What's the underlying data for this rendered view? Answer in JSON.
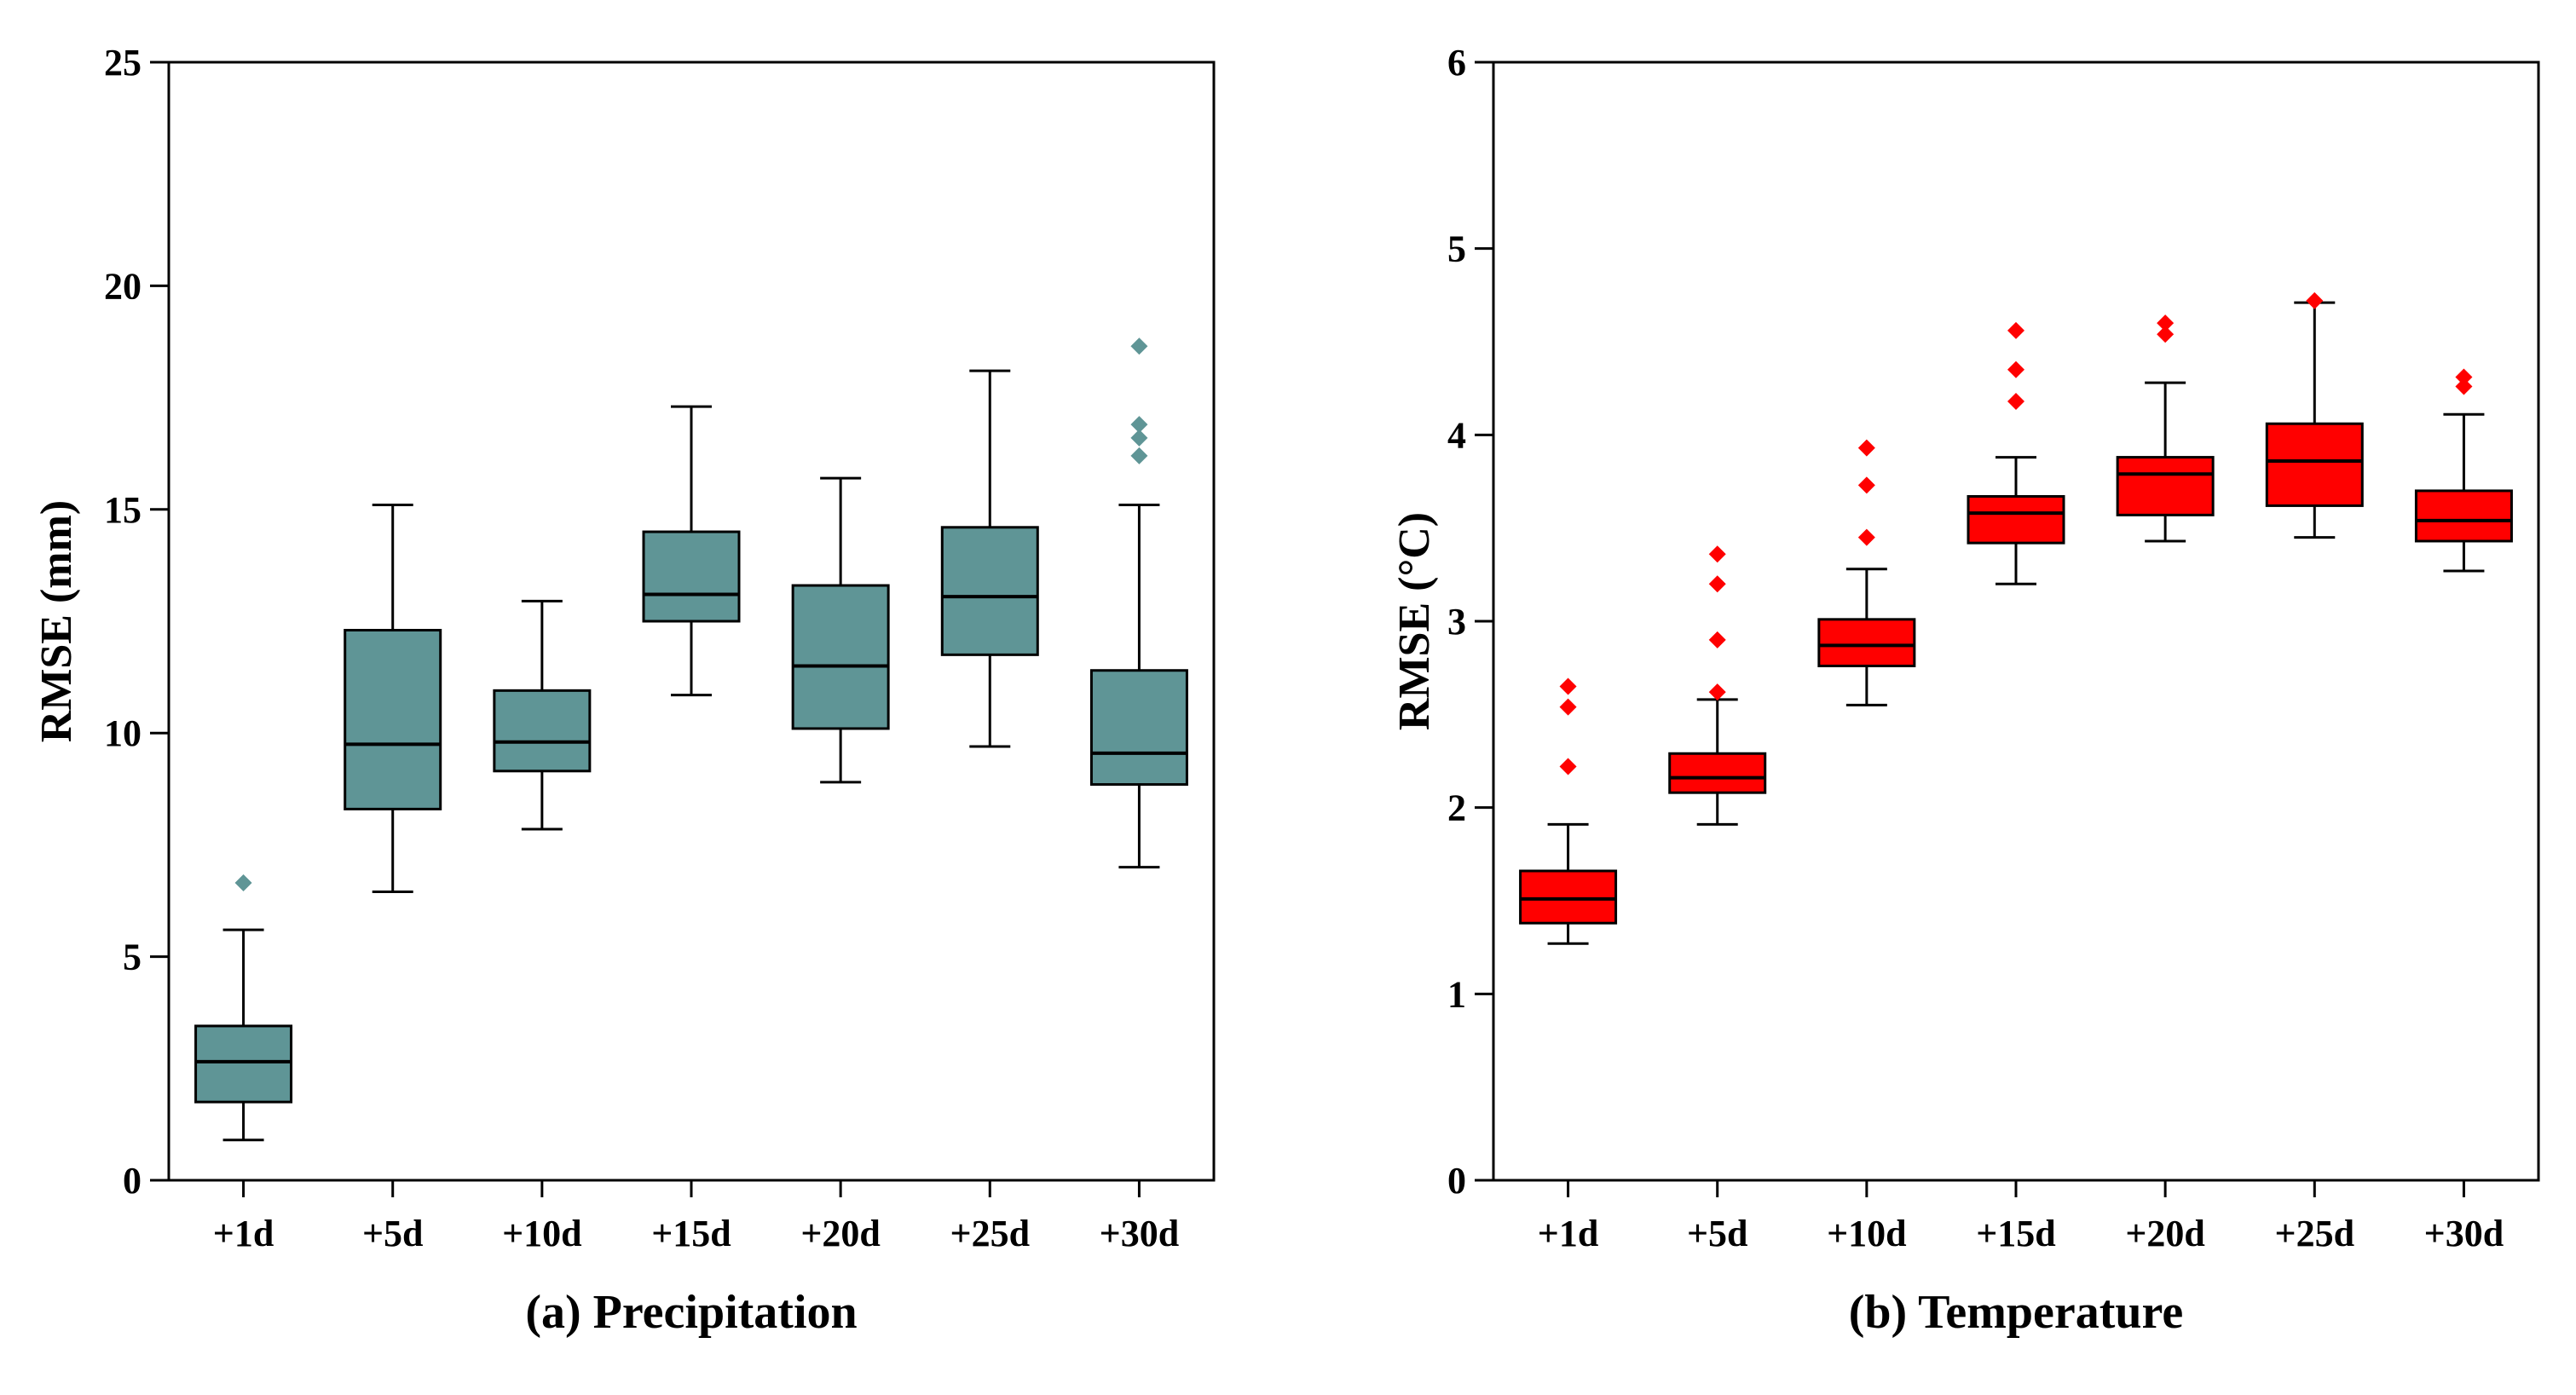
{
  "chart_data": [
    {
      "type": "boxplot",
      "title": "(a) Precipitation",
      "xlabel": "",
      "ylabel": "RMSE (mm)",
      "ylim": [
        0,
        25
      ],
      "yticks": [
        0,
        5,
        10,
        15,
        20,
        25
      ],
      "color": "#5F9596",
      "categories": [
        "+1d",
        "+5d",
        "+10d",
        "+15d",
        "+20d",
        "+25d",
        "+30d"
      ],
      "boxes": [
        {
          "min": 0.9,
          "q1": 1.75,
          "median": 2.65,
          "q3": 3.45,
          "max": 5.6,
          "outliers": [
            6.65
          ]
        },
        {
          "min": 6.45,
          "q1": 8.3,
          "median": 9.75,
          "q3": 12.3,
          "max": 15.1,
          "outliers": []
        },
        {
          "min": 7.85,
          "q1": 9.15,
          "median": 9.8,
          "q3": 10.95,
          "max": 12.95,
          "outliers": []
        },
        {
          "min": 10.85,
          "q1": 12.5,
          "median": 13.1,
          "q3": 14.5,
          "max": 17.3,
          "outliers": []
        },
        {
          "min": 8.9,
          "q1": 10.1,
          "median": 11.5,
          "q3": 13.3,
          "max": 15.7,
          "outliers": []
        },
        {
          "min": 9.7,
          "q1": 11.75,
          "median": 13.05,
          "q3": 14.6,
          "max": 18.1,
          "outliers": []
        },
        {
          "min": 7.0,
          "q1": 8.85,
          "median": 9.55,
          "q3": 11.4,
          "max": 15.1,
          "outliers": [
            16.2,
            16.6,
            16.9,
            18.65
          ]
        }
      ]
    },
    {
      "type": "boxplot",
      "title": "(b) Temperature",
      "xlabel": "",
      "ylabel": "RMSE (°C)",
      "ylim": [
        0,
        6
      ],
      "yticks": [
        0,
        1,
        2,
        3,
        4,
        5,
        6
      ],
      "color": "#FF0000",
      "categories": [
        "+1d",
        "+5d",
        "+10d",
        "+15d",
        "+20d",
        "+25d",
        "+30d"
      ],
      "boxes": [
        {
          "min": 1.27,
          "q1": 1.38,
          "median": 1.51,
          "q3": 1.66,
          "max": 1.91,
          "outliers": [
            2.22,
            2.54,
            2.65
          ]
        },
        {
          "min": 1.91,
          "q1": 2.08,
          "median": 2.16,
          "q3": 2.29,
          "max": 2.58,
          "outliers": [
            2.62,
            2.9,
            3.2,
            3.36
          ]
        },
        {
          "min": 2.55,
          "q1": 2.76,
          "median": 2.87,
          "q3": 3.01,
          "max": 3.28,
          "outliers": [
            3.45,
            3.73,
            3.93
          ]
        },
        {
          "min": 3.2,
          "q1": 3.42,
          "median": 3.58,
          "q3": 3.67,
          "max": 3.88,
          "outliers": [
            4.18,
            4.35,
            4.56
          ]
        },
        {
          "min": 3.43,
          "q1": 3.57,
          "median": 3.79,
          "q3": 3.88,
          "max": 4.28,
          "outliers": [
            4.54,
            4.6
          ]
        },
        {
          "min": 3.45,
          "q1": 3.62,
          "median": 3.86,
          "q3": 4.06,
          "max": 4.71,
          "outliers": [
            4.72
          ]
        },
        {
          "min": 3.27,
          "q1": 3.43,
          "median": 3.54,
          "q3": 3.7,
          "max": 4.11,
          "outliers": [
            4.26,
            4.31
          ]
        }
      ]
    }
  ]
}
